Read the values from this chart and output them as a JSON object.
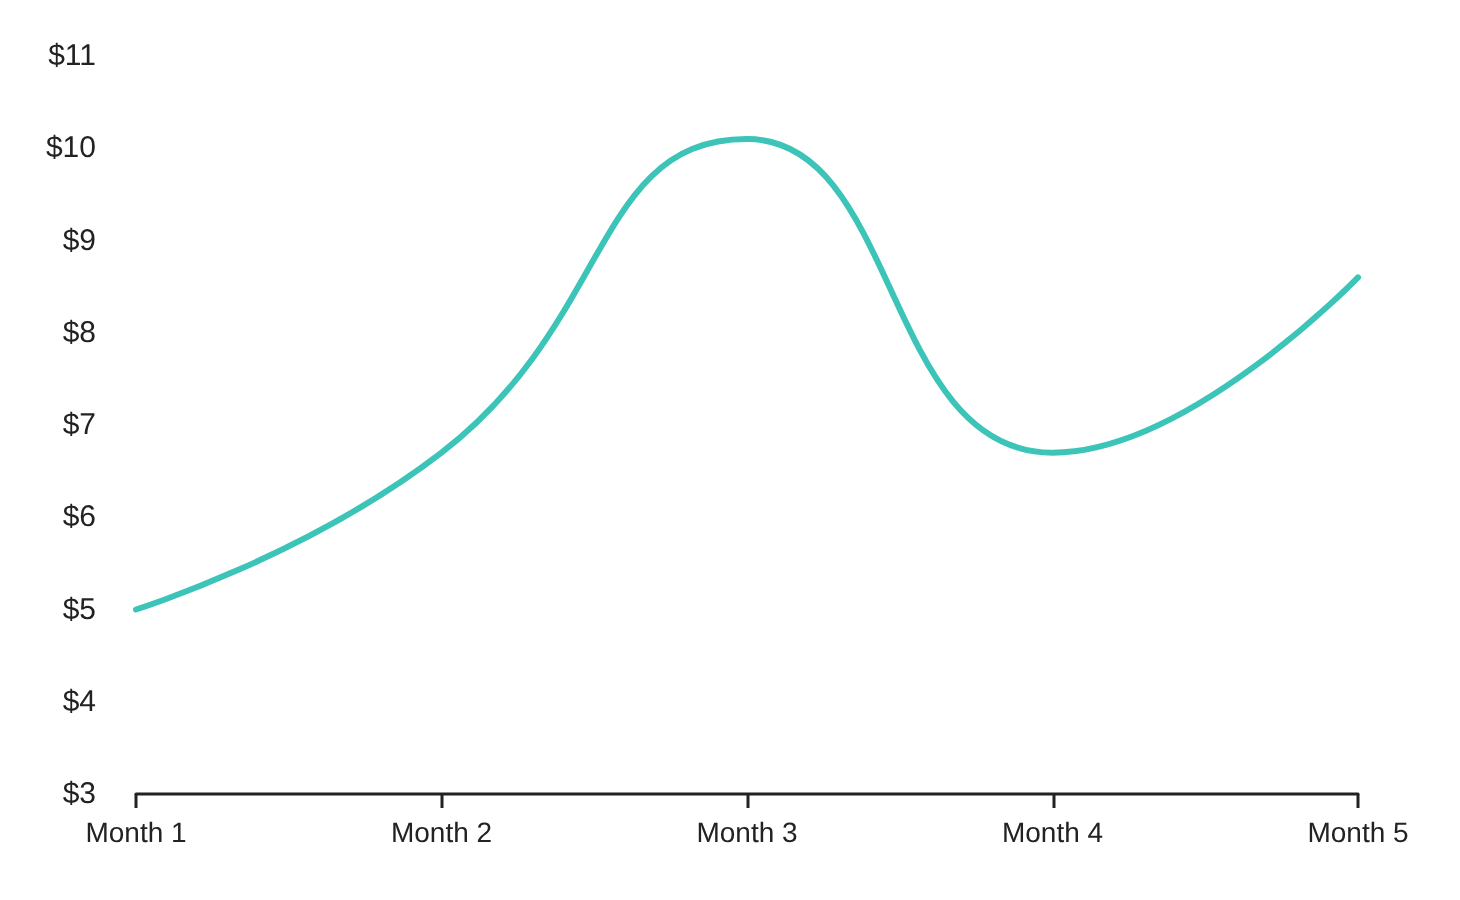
{
  "chart_data": {
    "type": "line",
    "categories": [
      "Month 1",
      "Month 2",
      "Month 3",
      "Month 4",
      "Month 5"
    ],
    "series": [
      {
        "color": "#3cc4b8",
        "values": [
          5,
          6.7,
          10.1,
          6.7,
          8.6
        ]
      }
    ],
    "ylim": [
      3,
      11
    ],
    "yticks": [
      {
        "value": 3,
        "label": "$3"
      },
      {
        "value": 4,
        "label": "$4"
      },
      {
        "value": 5,
        "label": "$5"
      },
      {
        "value": 6,
        "label": "$6"
      },
      {
        "value": 7,
        "label": "$7"
      },
      {
        "value": 8,
        "label": "$8"
      },
      {
        "value": 9,
        "label": "$9"
      },
      {
        "value": 10,
        "label": "$10"
      },
      {
        "value": 11,
        "label": "$11"
      }
    ],
    "grid": false
  }
}
